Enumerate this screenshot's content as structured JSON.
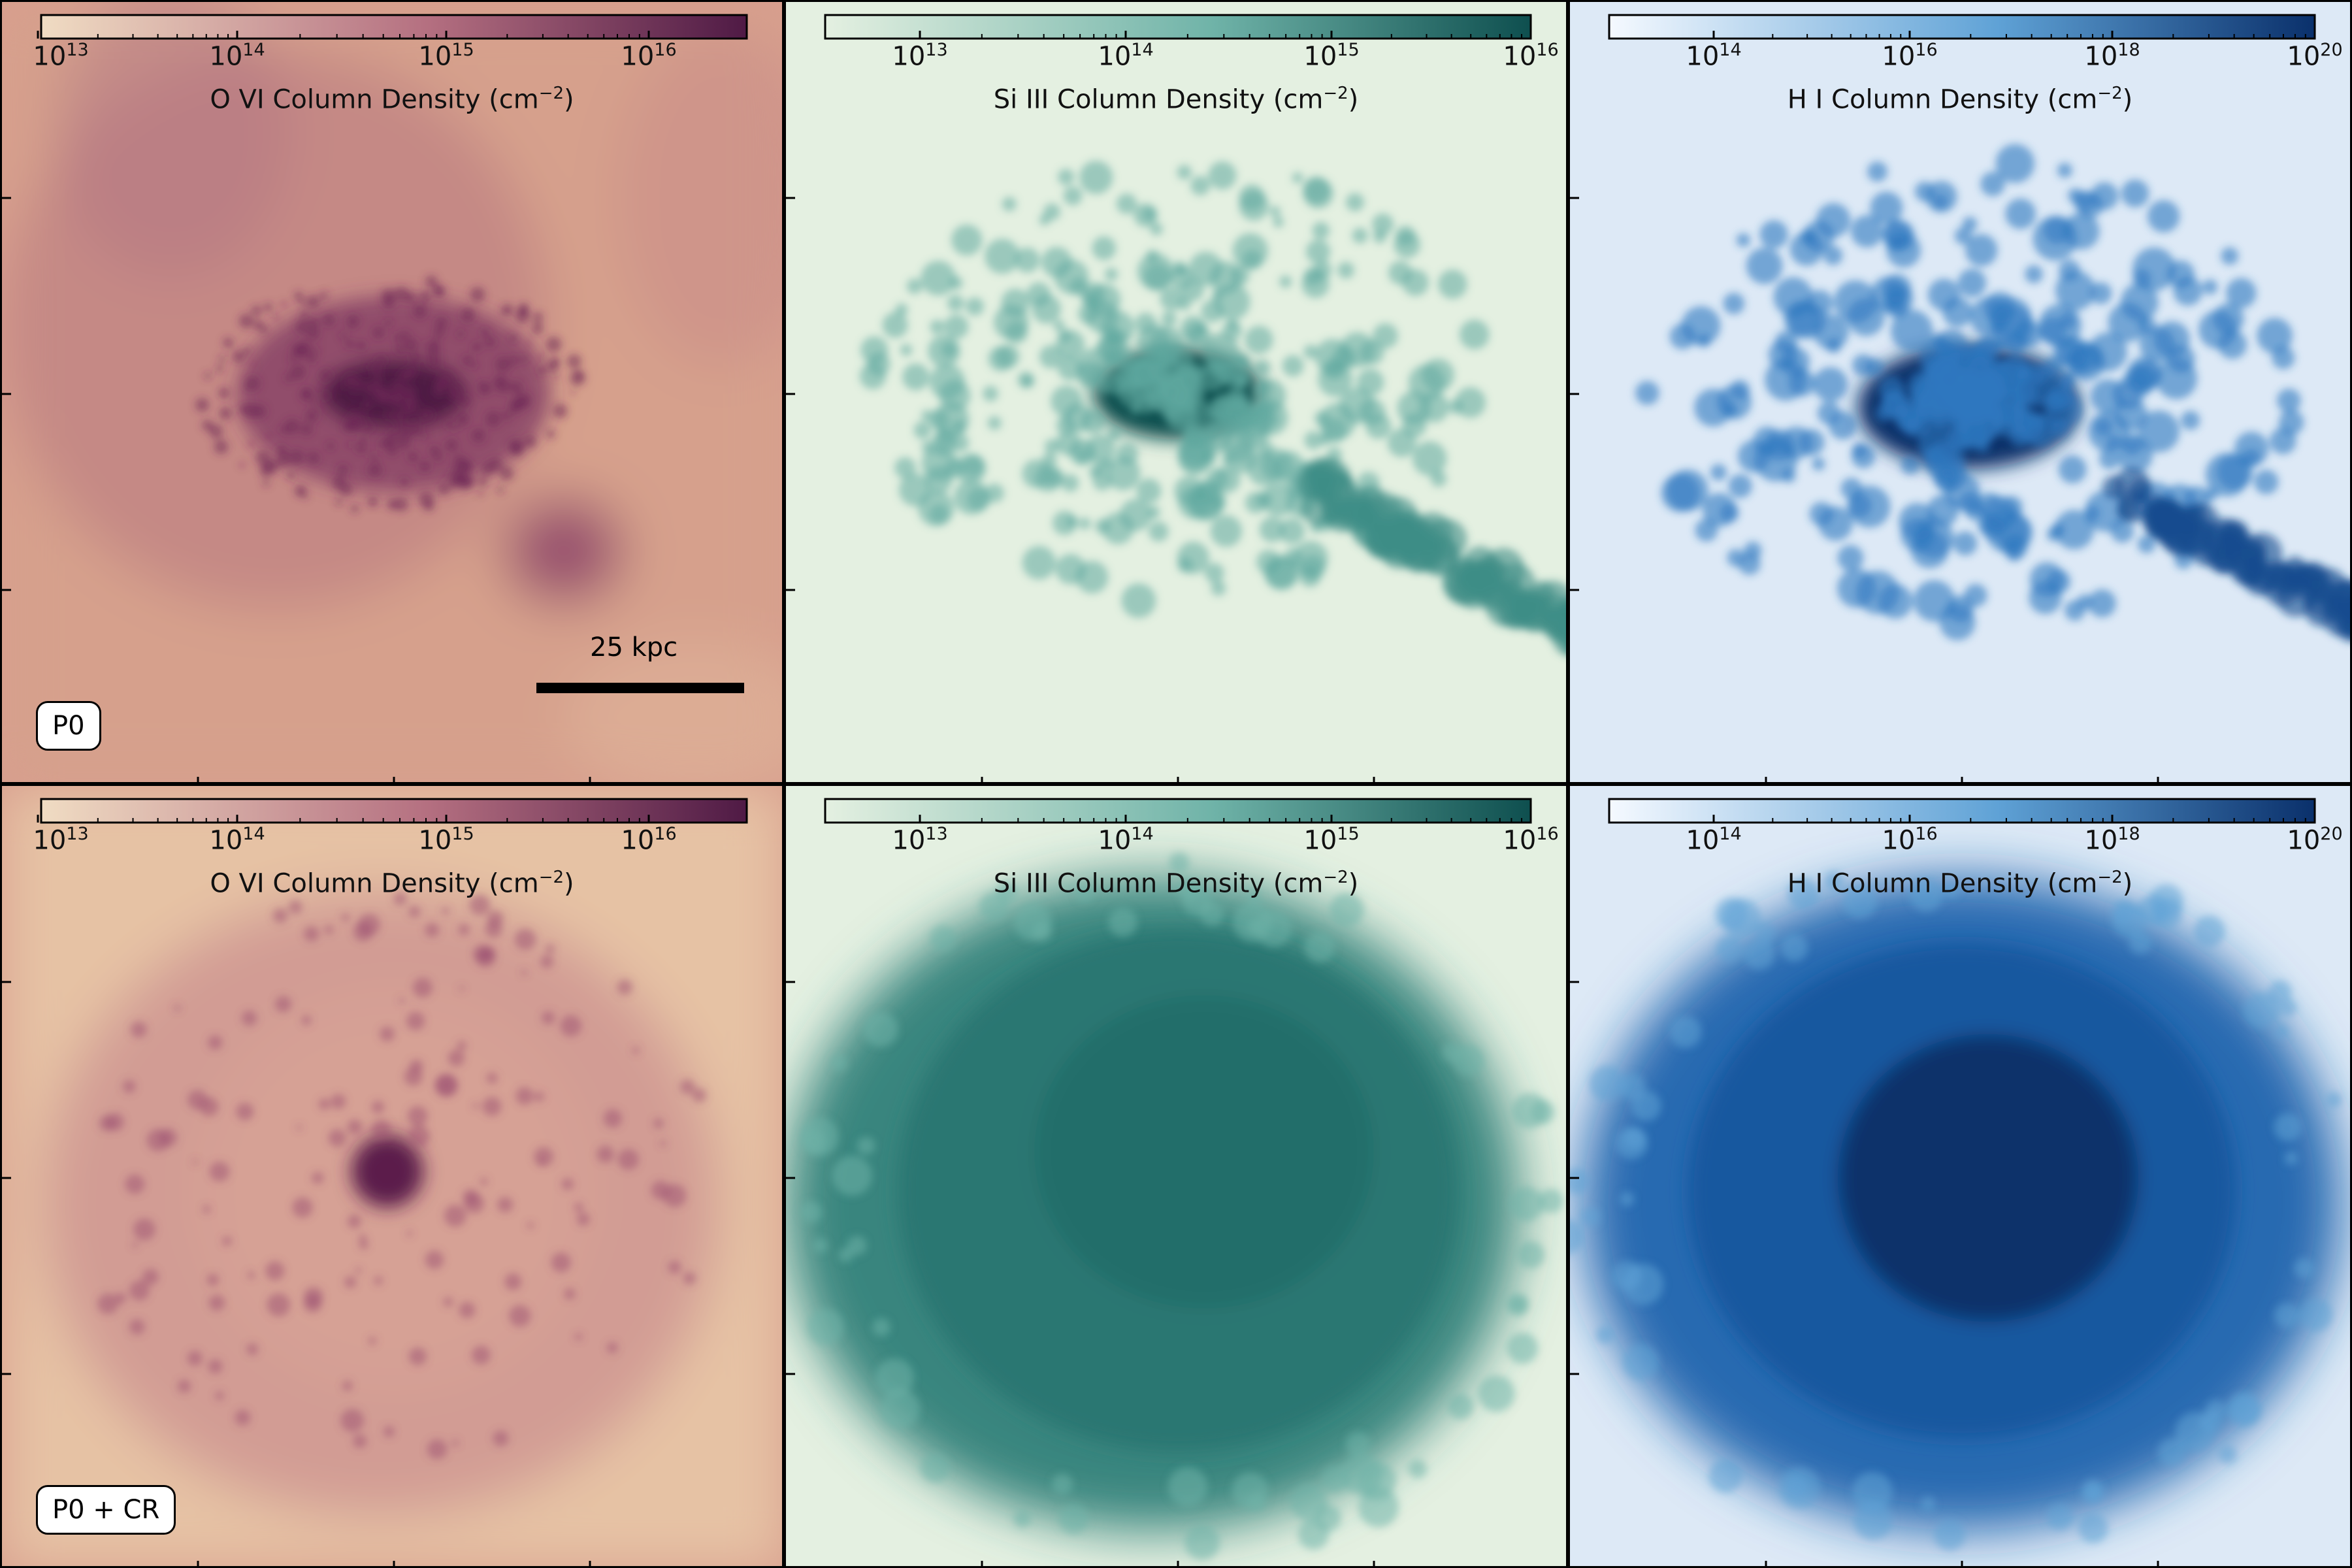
{
  "panels": [
    {
      "row": 0,
      "col": 0,
      "ion": "ovi",
      "colorbar": {
        "label": "O VI Column Density (cm",
        "label_unit_exp": "−2",
        "label_end": ")",
        "ticks": [
          {
            "base": "10",
            "exp": "13"
          },
          {
            "base": "10",
            "exp": "14"
          },
          {
            "base": "10",
            "exp": "15"
          },
          {
            "base": "10",
            "exp": "16"
          }
        ]
      },
      "run_label": "P0",
      "scalebar": {
        "text": "25 kpc"
      }
    },
    {
      "row": 0,
      "col": 1,
      "ion": "siiii",
      "colorbar": {
        "label": "Si III Column Density (cm",
        "label_unit_exp": "−2",
        "label_end": ")",
        "ticks": [
          {
            "base": "10",
            "exp": "13"
          },
          {
            "base": "10",
            "exp": "14"
          },
          {
            "base": "10",
            "exp": "15"
          },
          {
            "base": "10",
            "exp": "16"
          }
        ]
      }
    },
    {
      "row": 0,
      "col": 2,
      "ion": "hi",
      "colorbar": {
        "label": "H I Column Density (cm",
        "label_unit_exp": "−2",
        "label_end": ")",
        "ticks": [
          {
            "base": "10",
            "exp": "14"
          },
          {
            "base": "10",
            "exp": "16"
          },
          {
            "base": "10",
            "exp": "18"
          },
          {
            "base": "10",
            "exp": "20"
          }
        ]
      }
    },
    {
      "row": 1,
      "col": 0,
      "ion": "ovi",
      "colorbar": {
        "label": "O VI Column Density (cm",
        "label_unit_exp": "−2",
        "label_end": ")",
        "ticks": [
          {
            "base": "10",
            "exp": "13"
          },
          {
            "base": "10",
            "exp": "14"
          },
          {
            "base": "10",
            "exp": "15"
          },
          {
            "base": "10",
            "exp": "16"
          }
        ]
      },
      "run_label": "P0 + CR"
    },
    {
      "row": 1,
      "col": 1,
      "ion": "siiii",
      "colorbar": {
        "label": "Si III Column Density (cm",
        "label_unit_exp": "−2",
        "label_end": ")",
        "ticks": [
          {
            "base": "10",
            "exp": "13"
          },
          {
            "base": "10",
            "exp": "14"
          },
          {
            "base": "10",
            "exp": "15"
          },
          {
            "base": "10",
            "exp": "16"
          }
        ]
      }
    },
    {
      "row": 1,
      "col": 2,
      "ion": "hi",
      "colorbar": {
        "label": "H I Column Density (cm",
        "label_unit_exp": "−2",
        "label_end": ")",
        "ticks": [
          {
            "base": "10",
            "exp": "14"
          },
          {
            "base": "10",
            "exp": "16"
          },
          {
            "base": "10",
            "exp": "18"
          },
          {
            "base": "10",
            "exp": "20"
          }
        ]
      }
    }
  ],
  "colormaps": {
    "ovi": {
      "low": "#f0dcc3",
      "mid": "#b46f80",
      "high": "#4f1a45",
      "bg": "#d89e8e"
    },
    "siiii": {
      "low": "#e4f0e1",
      "mid": "#6fb3a8",
      "high": "#0e4f4f",
      "bg": "#e4f0e1"
    },
    "hi": {
      "low": "#f5f9ff",
      "mid": "#5fa2d6",
      "high": "#0a306b",
      "bg": "#dde9f6"
    }
  }
}
